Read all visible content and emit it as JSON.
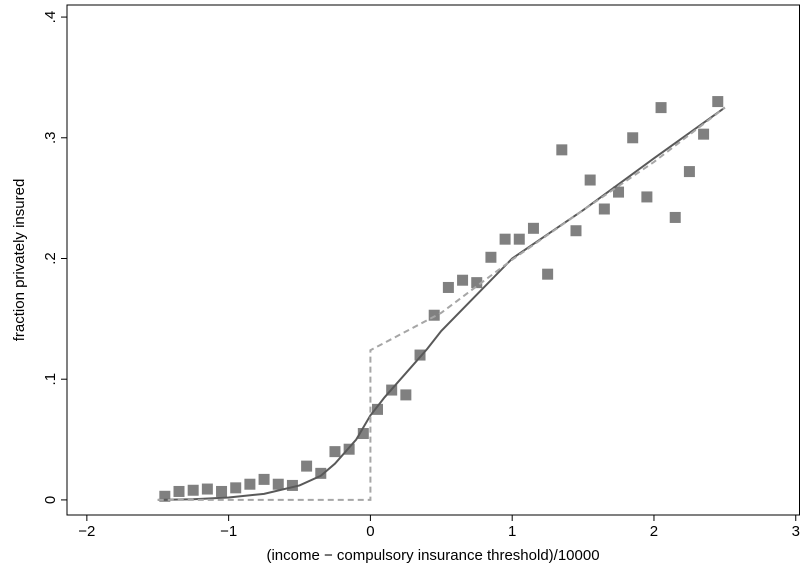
{
  "chart_data": {
    "type": "scatter",
    "xlabel": "(income − compulsory insurance threshold)/10000",
    "ylabel": "fraction privately insured",
    "xlim": [
      -2.14,
      3.03
    ],
    "ylim": [
      -0.0125,
      0.41
    ],
    "xticks": [
      {
        "value": -2,
        "label": "−2"
      },
      {
        "value": -1,
        "label": "−1"
      },
      0,
      1,
      2,
      3
    ],
    "yticks": [
      0,
      {
        "value": 0.1,
        "label": ".1"
      },
      {
        "value": 0.2,
        "label": ".2"
      },
      {
        "value": 0.3,
        "label": ".3"
      },
      {
        "value": 0.4,
        "label": ".4"
      }
    ],
    "grid": false,
    "series": [
      {
        "color": "#808080",
        "marker": "square",
        "x": [
          -1.45,
          -1.35,
          -1.25,
          -1.15,
          -1.05,
          -0.95,
          -0.85,
          -0.75,
          -0.65,
          -0.55,
          -0.45,
          -0.35,
          -0.25,
          -0.15,
          -0.05,
          0.05,
          0.15,
          0.25,
          0.35,
          0.45,
          0.55,
          0.65,
          0.75,
          0.85,
          0.95,
          1.05,
          1.15,
          1.25,
          1.35,
          1.45,
          1.55,
          1.65,
          1.75,
          1.85,
          1.95,
          2.05,
          2.15,
          2.25,
          2.35,
          2.45
        ],
        "values": [
          0.003,
          0.007,
          0.008,
          0.009,
          0.007,
          0.01,
          0.013,
          0.017,
          0.013,
          0.012,
          0.028,
          0.022,
          0.04,
          0.042,
          0.055,
          0.075,
          0.091,
          0.087,
          0.12,
          0.153,
          0.176,
          0.182,
          0.18,
          0.201,
          0.216,
          0.216,
          0.225,
          0.187,
          0.29,
          0.223,
          0.265,
          0.241,
          0.255,
          0.3,
          0.251,
          0.325,
          0.234,
          0.272,
          0.303,
          0.33
        ]
      },
      {
        "color": "#595959",
        "line_style": "solid",
        "x": [
          -1.5,
          -1.25,
          -1,
          -0.75,
          -0.5,
          -0.35,
          -0.25,
          -0.1,
          0,
          0.1,
          0.25,
          0.4,
          0.5,
          0.75,
          1,
          1.25,
          1.5,
          2,
          2.5
        ],
        "values": [
          0,
          0.0005,
          0.002,
          0.005,
          0.012,
          0.02,
          0.03,
          0.05,
          0.07,
          0.085,
          0.105,
          0.125,
          0.14,
          0.17,
          0.2,
          0.22,
          0.24,
          0.283,
          0.325
        ]
      },
      {
        "color": "#a6a6a6",
        "line_style": "dashed",
        "x": [
          -1.5,
          0,
          0,
          0.5,
          1,
          1.5,
          2,
          2.5
        ],
        "values": [
          0,
          0,
          0.124,
          0.155,
          0.199,
          0.24,
          0.28,
          0.325
        ]
      }
    ]
  }
}
